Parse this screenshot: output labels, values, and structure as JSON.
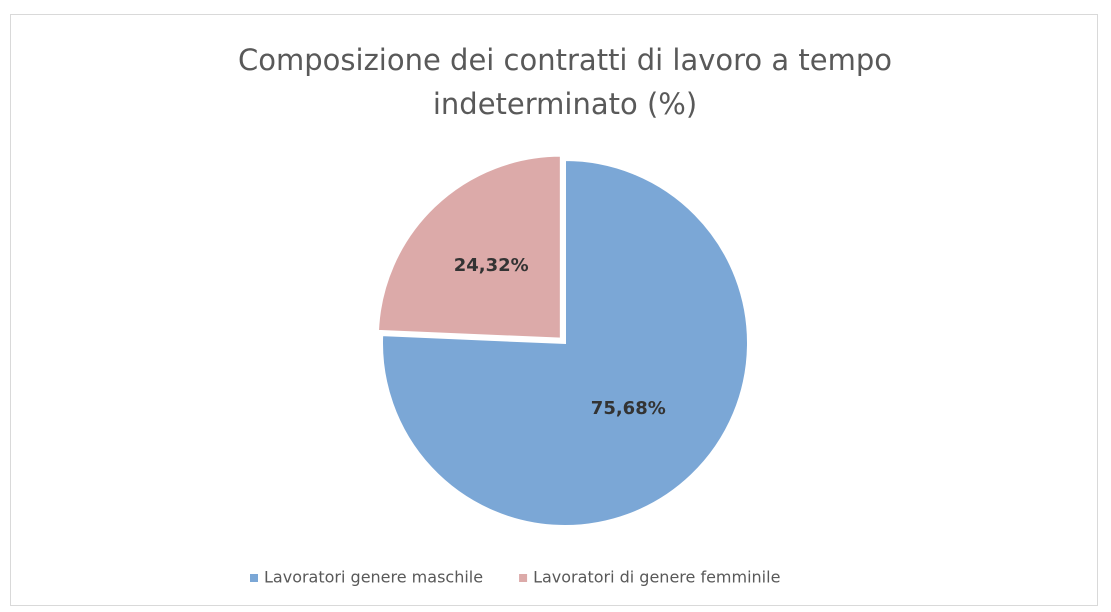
{
  "chart_data": {
    "type": "pie",
    "title": "Composizione dei contratti di lavoro a tempo indeterminato (%)",
    "categories": [
      "Lavoratori genere maschile",
      "Lavoratori di genere femminile"
    ],
    "values": [
      75.68,
      24.32
    ],
    "value_labels": [
      "75,68%",
      "24,32%"
    ],
    "colors": [
      "#7ba7d6",
      "#dcaaa9"
    ],
    "legend": "bottom"
  }
}
